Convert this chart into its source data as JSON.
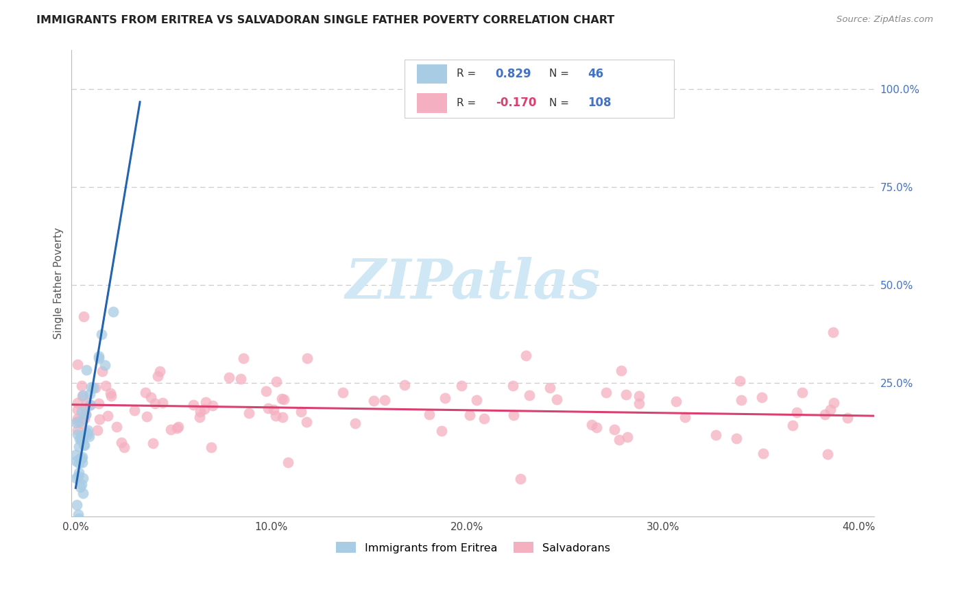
{
  "title": "IMMIGRANTS FROM ERITREA VS SALVADORAN SINGLE FATHER POVERTY CORRELATION CHART",
  "source": "Source: ZipAtlas.com",
  "ylabel": "Single Father Poverty",
  "legend_label_blue": "Immigrants from Eritrea",
  "legend_label_pink": "Salvadorans",
  "blue_R": 0.829,
  "blue_N": 46,
  "pink_R": -0.17,
  "pink_N": 108,
  "blue_color": "#a8cce4",
  "pink_color": "#f4afc0",
  "blue_edge_color": "#7ab3d4",
  "pink_edge_color": "#e890aa",
  "blue_line_color": "#2464ae",
  "pink_line_color": "#d94070",
  "watermark_color": "#d0e8f5",
  "background_color": "#ffffff",
  "grid_color": "#cccccc",
  "ytick_color": "#4472c4",
  "title_color": "#222222",
  "source_color": "#888888",
  "xlim": [
    -0.002,
    0.408
  ],
  "ylim": [
    -0.09,
    1.1
  ],
  "xticks": [
    0.0,
    0.1,
    0.2,
    0.3,
    0.4
  ],
  "xtick_labels": [
    "0.0%",
    "10.0%",
    "20.0%",
    "30.0%",
    "40.0%"
  ],
  "yticks": [
    0.0,
    0.25,
    0.5,
    0.75,
    1.0
  ],
  "ytick_labels": [
    "",
    "25.0%",
    "50.0%",
    "75.0%",
    "100.0%"
  ]
}
